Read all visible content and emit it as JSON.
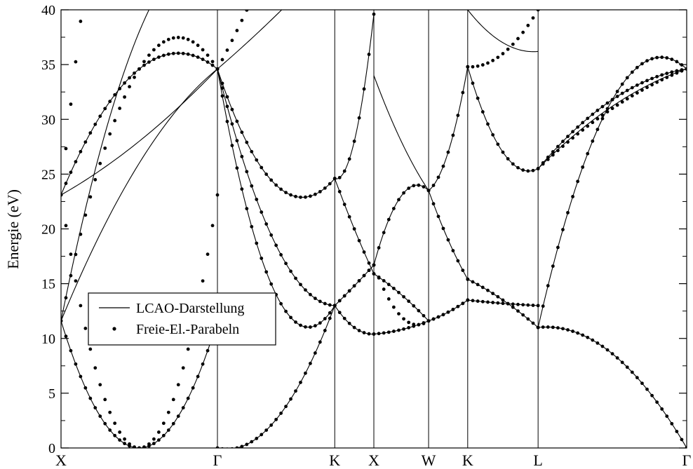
{
  "chart_data": {
    "type": "line",
    "title": "",
    "xlabel": "",
    "ylabel": "Energie (eV)",
    "ylim": [
      0,
      40
    ],
    "yticks": [
      0,
      5,
      10,
      15,
      20,
      25,
      30,
      35,
      40
    ],
    "grid": false,
    "legend_position": "lower-left",
    "legend": [
      {
        "label": "LCAO-Darstellung",
        "style": "line"
      },
      {
        "label": "Freie-El.-Parabeln",
        "style": "dots"
      }
    ],
    "k_points": [
      {
        "label": "X",
        "x": 0
      },
      {
        "label": "Γ",
        "x": 1
      },
      {
        "label": "K",
        "x": 1.75
      },
      {
        "label": "X",
        "x": 2
      },
      {
        "label": "W",
        "x": 2.35
      },
      {
        "label": "K",
        "x": 2.6
      },
      {
        "label": "L",
        "x": 3.05
      },
      {
        "label": "Γ",
        "x": 4
      }
    ],
    "segments": [
      {
        "from": "X",
        "to": "Γ",
        "dots": [
          [
            23.1,
            0.0,
            23.1
          ],
          [
            11.6,
            0.0,
            11.6
          ],
          [
            23.1,
            34.6,
            34.6
          ],
          [
            11.6,
            34.6,
            34.6
          ],
          [
            23.1,
            69.2,
            69.2
          ]
        ],
        "lines": [
          [
            23.1,
            28.0,
            34.6
          ],
          [
            11.6,
            26.0,
            34.6
          ],
          [
            11.6,
            38.0,
            46.0
          ],
          [
            11.6,
            0.0,
            11.6
          ],
          [
            23.1,
            34.6,
            34.6
          ]
        ]
      },
      {
        "from": "Γ",
        "to": "K",
        "dots": [
          [
            0.0,
            2.6,
            13.0
          ],
          [
            34.6,
            24.0,
            24.6
          ],
          [
            34.6,
            46.0,
            60.0
          ],
          [
            34.6,
            14.0,
            13.0
          ],
          [
            34.6,
            18.5,
            13.0
          ]
        ],
        "lines": [
          [
            0.0,
            2.6,
            13.0
          ],
          [
            34.6,
            24.0,
            24.6
          ],
          [
            34.6,
            14.0,
            13.0
          ],
          [
            34.6,
            18.5,
            13.0
          ],
          [
            34.6,
            39.5,
            45.0
          ]
        ]
      },
      {
        "from": "K",
        "to": "X",
        "dots": [
          [
            13.0,
            14.8,
            16.7
          ],
          [
            24.6,
            20.0,
            15.9
          ],
          [
            13.0,
            14.8,
            16.7
          ],
          [
            24.6,
            28.0,
            39.6
          ],
          [
            13.0,
            11.0,
            10.4
          ]
        ],
        "lines": [
          [
            13.0,
            14.8,
            16.7
          ],
          [
            24.6,
            20.0,
            15.9
          ],
          [
            24.6,
            28.0,
            39.6
          ],
          [
            13.0,
            11.0,
            10.4
          ]
        ]
      },
      {
        "from": "X",
        "to": "W",
        "dots": [
          [
            10.4,
            10.8,
            11.6
          ],
          [
            15.9,
            14.0,
            11.6
          ],
          [
            16.7,
            23.0,
            23.5
          ],
          [
            16.7,
            12.0,
            11.6
          ]
        ],
        "lines": [
          [
            10.4,
            10.8,
            11.6
          ],
          [
            15.9,
            14.0,
            11.6
          ],
          [
            16.7,
            23.0,
            23.5
          ],
          [
            34.0,
            28.0,
            23.5
          ]
        ]
      },
      {
        "from": "W",
        "to": "K",
        "dots": [
          [
            11.6,
            12.4,
            13.5
          ],
          [
            23.5,
            27.0,
            34.8
          ],
          [
            23.5,
            19.0,
            15.4
          ],
          [
            11.6,
            12.4,
            13.5
          ]
        ],
        "lines": [
          [
            11.6,
            12.4,
            13.5
          ],
          [
            23.5,
            27.0,
            34.8
          ],
          [
            23.5,
            19.0,
            15.4
          ]
        ]
      },
      {
        "from": "K",
        "to": "L",
        "dots": [
          [
            13.5,
            13.2,
            13.0
          ],
          [
            15.4,
            13.5,
            11.0
          ],
          [
            34.8,
            36.0,
            40.0
          ],
          [
            34.8,
            27.0,
            25.5
          ]
        ],
        "lines": [
          [
            13.5,
            13.2,
            13.0
          ],
          [
            15.4,
            13.5,
            11.0
          ],
          [
            34.8,
            27.0,
            25.5
          ],
          [
            40.0,
            37.0,
            36.2
          ]
        ]
      },
      {
        "from": "L",
        "to": "Γ",
        "dots": [
          [
            11.0,
            8.6,
            0.0
          ],
          [
            25.5,
            31.8,
            34.6
          ],
          [
            11.0,
            31.8,
            34.6
          ],
          [
            25.5,
            31.0,
            34.6
          ]
        ],
        "lines": [
          [
            11.0,
            8.6,
            0.0
          ],
          [
            25.5,
            31.8,
            34.6
          ],
          [
            11.0,
            31.8,
            34.6
          ],
          [
            25.5,
            31.2,
            34.6
          ]
        ]
      }
    ]
  }
}
